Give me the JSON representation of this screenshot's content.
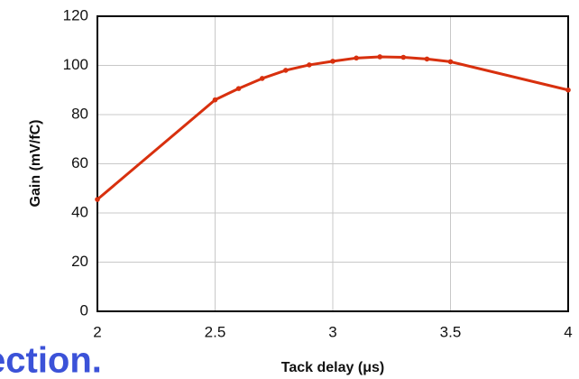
{
  "chart_data": {
    "type": "line",
    "x_label": "Tack delay (μs)",
    "y_label": "Gain (mV/fC)",
    "x": [
      2,
      2.5,
      2.6,
      2.7,
      2.8,
      2.9,
      3.0,
      3.1,
      3.2,
      3.3,
      3.4,
      3.5,
      4
    ],
    "series": [
      {
        "color": "#d8300e",
        "values": [
          45.5,
          86,
          90.6,
          94.7,
          98,
          100.2,
          101.7,
          103,
          103.5,
          103.3,
          102.6,
          101.5,
          90
        ]
      }
    ],
    "xlim": [
      2,
      4
    ],
    "xticks": [
      2,
      2.5,
      3,
      3.5,
      4
    ],
    "ylim": [
      0,
      120
    ],
    "yticks": [
      0,
      20,
      40,
      60,
      80,
      100,
      120
    ],
    "grid": true
  },
  "overlay_text": "ection."
}
